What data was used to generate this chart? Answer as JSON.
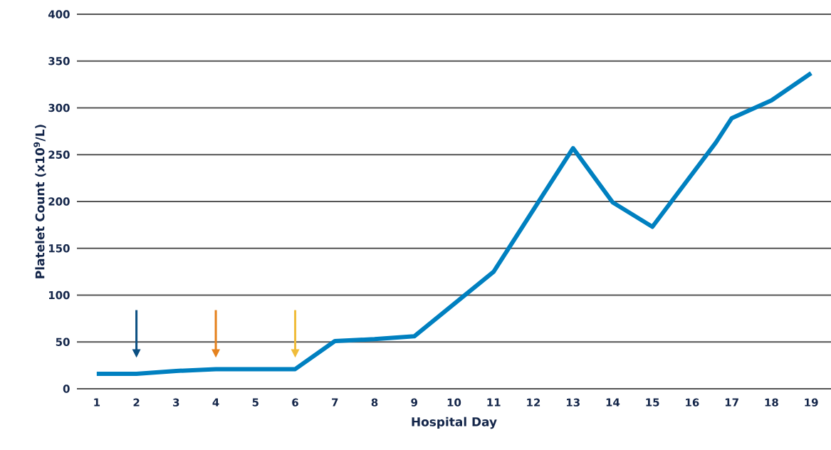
{
  "chart_data": {
    "type": "line",
    "xlabel": "Hospital Day",
    "ylabel": "Platelet Count (x10$^{9}$/L)",
    "series": [
      {
        "color": "#0080c0",
        "x": [
          1,
          2,
          3,
          4,
          5,
          6,
          7,
          8,
          9,
          11,
          13,
          14,
          15,
          16.6,
          17,
          18,
          19
        ],
        "values": [
          16,
          16,
          19,
          21,
          21,
          21,
          51,
          53,
          56,
          125,
          257,
          199,
          173,
          263,
          289,
          308,
          337
        ]
      }
    ],
    "xlim": [
      0.5,
      19.5
    ],
    "xticks": [
      1,
      2,
      3,
      4,
      5,
      6,
      7,
      8,
      9,
      10,
      11,
      12,
      13,
      14,
      15,
      16,
      17,
      18,
      19
    ],
    "ylim": [
      0,
      400
    ],
    "yticks": [
      0,
      50,
      100,
      150,
      200,
      250,
      300,
      350,
      400
    ],
    "grid": "y",
    "marker": "none",
    "line_style": "solid"
  }
}
